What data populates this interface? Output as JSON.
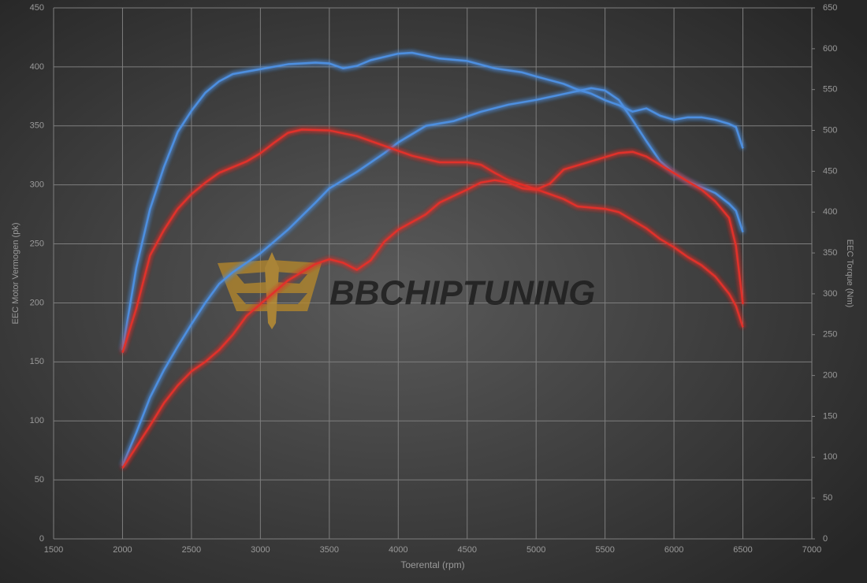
{
  "chart_data": {
    "type": "line",
    "watermark": "BBCHIPTUNING",
    "x_label": "Toerental (rpm)",
    "y_label": "EEC Motor Vermogen (pk)",
    "y2_label": "EEC Torque (Nm)",
    "xlim": [
      1500,
      7000
    ],
    "xticks": [
      1500,
      2000,
      2500,
      3000,
      3500,
      4000,
      4500,
      5000,
      5500,
      6000,
      6500,
      7000
    ],
    "ylim": [
      0,
      450
    ],
    "yticks": [
      0,
      50,
      100,
      150,
      200,
      250,
      300,
      350,
      400,
      450
    ],
    "y2lim": [
      0,
      650
    ],
    "y2ticks": [
      0,
      50,
      100,
      150,
      200,
      250,
      300,
      350,
      400,
      450,
      500,
      550,
      600,
      650
    ],
    "grid": true,
    "series": [
      {
        "color": "#4d8fe0",
        "axis": "y2",
        "x": [
          2000,
          2100,
          2200,
          2300,
          2400,
          2500,
          2600,
          2700,
          2800,
          3000,
          3200,
          3400,
          3500,
          3600,
          3700,
          3800,
          4000,
          4100,
          4300,
          4500,
          4700,
          4900,
          5000,
          5200,
          5300,
          5400,
          5500,
          5600,
          5700,
          5800,
          5900,
          6000,
          6100,
          6200,
          6300,
          6400,
          6450,
          6500
        ],
        "values": [
          231,
          332,
          404,
          455,
          498,
          524,
          546,
          560,
          569,
          575,
          581,
          583,
          582,
          576,
          579,
          586,
          594,
          595,
          588,
          585,
          576,
          571,
          566,
          557,
          550,
          545,
          537,
          531,
          523,
          527,
          518,
          513,
          516,
          516,
          513,
          508,
          504,
          478
        ]
      },
      {
        "color": "#4d8fe0",
        "axis": "y",
        "x": [
          2000,
          2100,
          2200,
          2300,
          2400,
          2500,
          2600,
          2700,
          2800,
          2900,
          3000,
          3200,
          3400,
          3500,
          3700,
          3900,
          4000,
          4200,
          4400,
          4600,
          4800,
          5000,
          5200,
          5400,
          5500,
          5600,
          5700,
          5800,
          5900,
          6000,
          6100,
          6200,
          6300,
          6400,
          6450,
          6500
        ],
        "values": [
          62,
          90,
          120,
          143,
          163,
          182,
          200,
          216,
          226,
          234,
          242,
          262,
          285,
          297,
          311,
          327,
          336,
          350,
          354,
          362,
          368,
          372,
          377,
          382,
          380,
          372,
          355,
          337,
          320,
          310,
          303,
          298,
          293,
          284,
          278,
          260
        ]
      },
      {
        "color": "#e0302c",
        "axis": "y2",
        "x": [
          2000,
          2100,
          2200,
          2300,
          2400,
          2500,
          2600,
          2700,
          2800,
          2900,
          3000,
          3100,
          3200,
          3300,
          3500,
          3700,
          3900,
          4100,
          4300,
          4500,
          4600,
          4700,
          4800,
          5000,
          5200,
          5300,
          5500,
          5600,
          5700,
          5800,
          5900,
          6000,
          6100,
          6200,
          6300,
          6400,
          6450,
          6500
        ],
        "values": [
          228,
          282,
          347,
          378,
          404,
          422,
          436,
          448,
          455,
          462,
          472,
          485,
          497,
          501,
          500,
          493,
          481,
          469,
          461,
          461,
          458,
          448,
          439,
          428,
          416,
          407,
          404,
          400,
          390,
          380,
          367,
          357,
          345,
          335,
          321,
          300,
          285,
          259
        ]
      },
      {
        "color": "#e0302c",
        "axis": "y",
        "x": [
          2000,
          2100,
          2200,
          2300,
          2400,
          2500,
          2600,
          2700,
          2800,
          2900,
          3000,
          3200,
          3400,
          3500,
          3600,
          3700,
          3800,
          3900,
          4000,
          4200,
          4300,
          4500,
          4600,
          4700,
          4800,
          4900,
          5000,
          5100,
          5200,
          5400,
          5600,
          5700,
          5800,
          5900,
          6000,
          6100,
          6200,
          6300,
          6400,
          6450,
          6500
        ],
        "values": [
          60,
          78,
          96,
          115,
          130,
          142,
          150,
          160,
          173,
          189,
          199,
          219,
          233,
          237,
          234,
          228,
          236,
          252,
          262,
          275,
          285,
          296,
          302,
          304,
          302,
          297,
          296,
          301,
          313,
          320,
          327,
          328,
          324,
          317,
          310,
          303,
          296,
          286,
          272,
          248,
          199
        ]
      }
    ]
  }
}
